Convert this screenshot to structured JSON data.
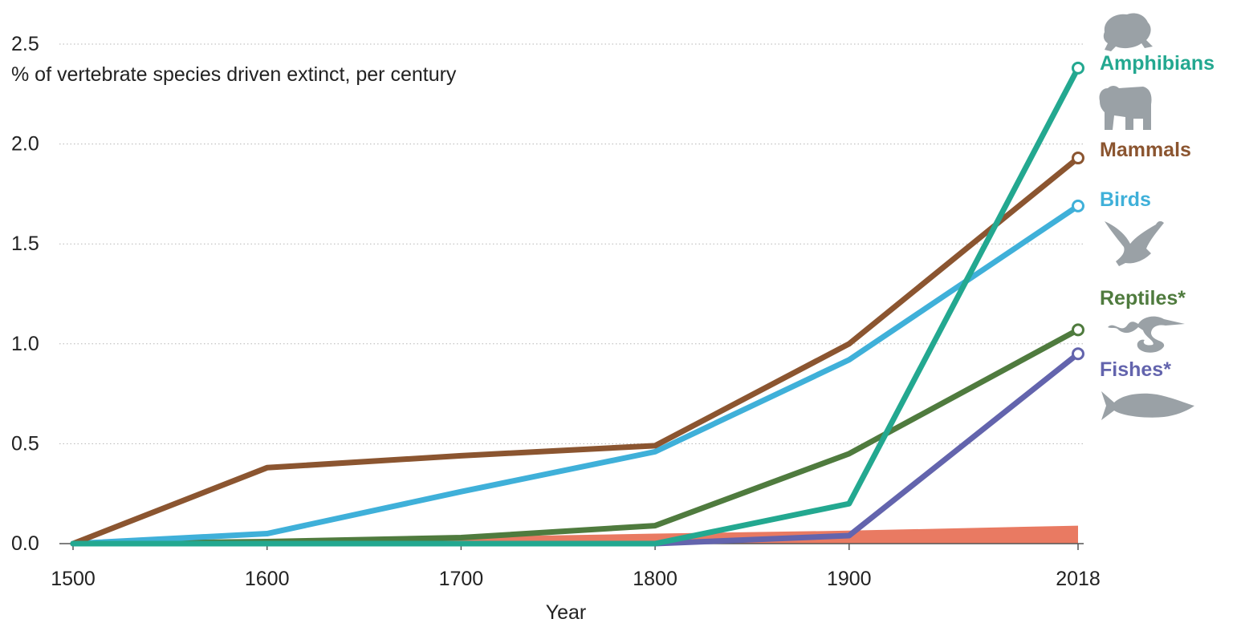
{
  "chart_data": {
    "type": "line",
    "title": "",
    "ylabel": "% of vertebrate species driven extinct, per century",
    "xlabel": "Year",
    "x": [
      1500,
      1600,
      1700,
      1800,
      1900,
      2018
    ],
    "x_tick_labels": [
      "1500",
      "1600",
      "1700",
      "1800",
      "1900",
      "2018"
    ],
    "y_ticks": [
      0.0,
      0.5,
      1.0,
      1.5,
      2.0,
      2.5
    ],
    "y_tick_labels": [
      "0.0",
      "0.5",
      "1.0",
      "1.5",
      "2.0",
      "2.5"
    ],
    "ylim": [
      0,
      2.5
    ],
    "xlim": [
      1500,
      2018
    ],
    "grid": "horizontal dotted",
    "legend": "direct labels at right of each line end",
    "background_band": {
      "color": "#e8735a",
      "x": [
        1500,
        1800,
        1900,
        2018
      ],
      "values": [
        0.0,
        0.05,
        0.065,
        0.09
      ]
    },
    "series": [
      {
        "name": "Amphibians",
        "color": "#23a890",
        "values": [
          0.0,
          0.0,
          0.0,
          0.0,
          0.2,
          2.38
        ],
        "icon": "frog-icon"
      },
      {
        "name": "Mammals",
        "color": "#8b5530",
        "values": [
          0.0,
          0.38,
          0.44,
          0.49,
          1.0,
          1.93
        ],
        "icon": "bear-icon"
      },
      {
        "name": "Birds",
        "color": "#3fb0d9",
        "values": [
          0.0,
          0.05,
          0.26,
          0.46,
          0.92,
          1.69
        ],
        "icon": "eagle-icon"
      },
      {
        "name": "Reptiles*",
        "color": "#4f7b3e",
        "values": [
          0.0,
          0.01,
          0.03,
          0.09,
          0.45,
          1.07
        ],
        "icon": "snake-icon"
      },
      {
        "name": "Fishes*",
        "color": "#6364ad",
        "values": [
          0.0,
          0.0,
          0.0,
          0.0,
          0.04,
          0.95
        ],
        "icon": "fish-icon"
      }
    ]
  }
}
